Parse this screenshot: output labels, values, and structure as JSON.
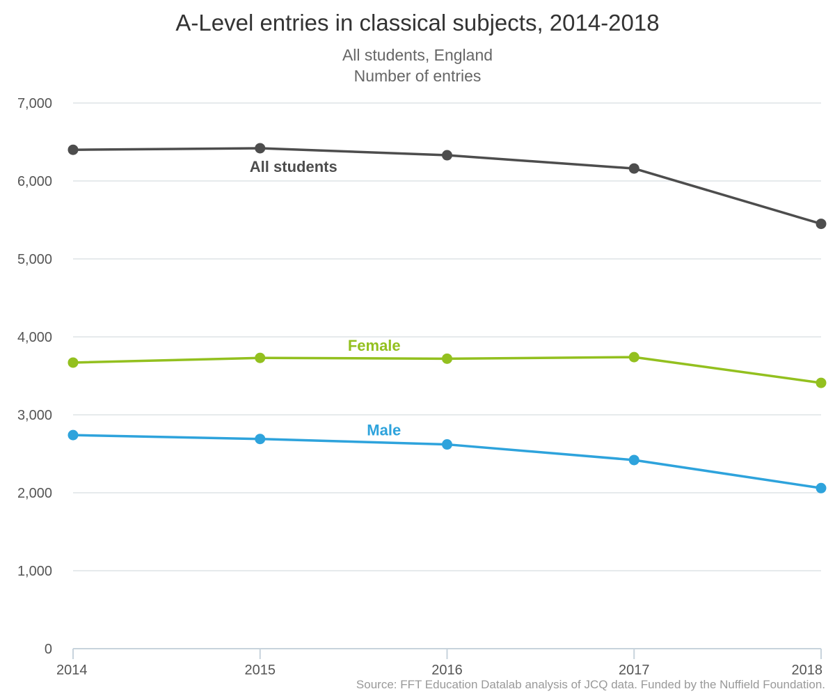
{
  "chart_data": {
    "type": "line",
    "title": "A-Level entries in classical subjects, 2014-2018",
    "subtitle": [
      "All students, England",
      "Number of entries"
    ],
    "x": [
      "2014",
      "2015",
      "2016",
      "2017",
      "2018"
    ],
    "ylim": [
      0,
      7000
    ],
    "yticks": [
      0,
      1000,
      2000,
      3000,
      4000,
      5000,
      6000,
      7000
    ],
    "ytick_labels": [
      "0",
      "1,000",
      "2,000",
      "3,000",
      "4,000",
      "5,000",
      "6,000",
      "7,000"
    ],
    "grid": true,
    "series": [
      {
        "name": "All students",
        "color": "#4d4d4d",
        "values": [
          6400,
          6420,
          6330,
          6160,
          5450
        ]
      },
      {
        "name": "Female",
        "color": "#93c01f",
        "values": [
          3670,
          3730,
          3720,
          3740,
          3410
        ]
      },
      {
        "name": "Male",
        "color": "#2ea3dc",
        "values": [
          2740,
          2690,
          2620,
          2420,
          2060
        ]
      }
    ],
    "source": "Source: FFT Education Datalab analysis of JCQ data. Funded by the Nuffield Foundation."
  }
}
